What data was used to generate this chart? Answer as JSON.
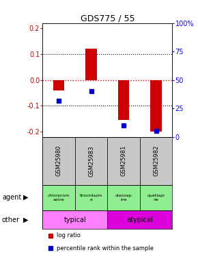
{
  "title": "GDS775 / 55",
  "samples": [
    "GSM25980",
    "GSM25983",
    "GSM25981",
    "GSM25982"
  ],
  "log_ratio": [
    -0.04,
    0.12,
    -0.155,
    -0.2
  ],
  "percentile_rank_pct": [
    32,
    40,
    10,
    5
  ],
  "ylim": [
    -0.22,
    0.22
  ],
  "right_yticks_pct": [
    0,
    25,
    50,
    75,
    100
  ],
  "left_yticks": [
    -0.2,
    -0.1,
    0.0,
    0.1,
    0.2
  ],
  "agent_labels": [
    "chlorprom\nazine",
    "thioridazin\ne",
    "olanzap\nine",
    "quetiapi\nne"
  ],
  "agent_color": "#90EE90",
  "other_info": [
    {
      "label": "typical",
      "start": 0,
      "end": 2,
      "color": "#FF80FF"
    },
    {
      "label": "atypical",
      "start": 2,
      "end": 4,
      "color": "#DD00DD"
    }
  ],
  "bar_color_red": "#CC0000",
  "bar_color_blue": "#0000CC",
  "zero_line_color": "#CC0000",
  "gsm_bg": "#C8C8C8",
  "bg_color": "#FFFFFF"
}
